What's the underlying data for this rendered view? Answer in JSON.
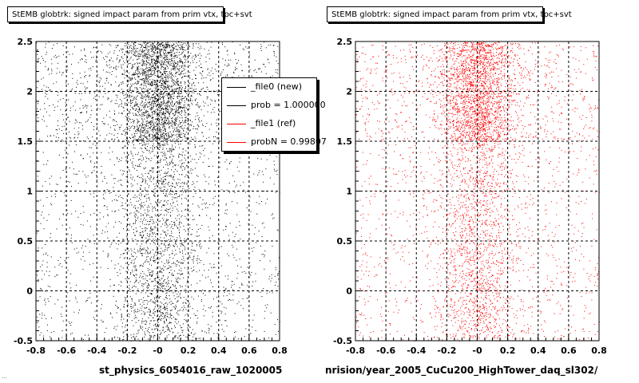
{
  "chart_data": [
    {
      "type": "scatter",
      "title": "StEMB globtrk: signed impact param from prim vtx, tpc+svt",
      "xlabel": "st_physics_6054016_raw_1020005",
      "ylabel": "",
      "xlim": [
        -0.8,
        0.8
      ],
      "ylim": [
        -0.5,
        2.5
      ],
      "xticks": [
        "-0.8",
        "-0.6",
        "-0.4",
        "-0.2",
        "-0",
        "0.2",
        "0.4",
        "0.6",
        "0.8"
      ],
      "yticks": [
        "-0.5",
        "0",
        "0.5",
        "1",
        "1.5",
        "2",
        "2.5"
      ],
      "grid": true,
      "series": [
        {
          "name": "_file0 (new)",
          "color": "#000000",
          "distribution": {
            "x_center": 0.0,
            "x_core_width": 0.12,
            "dense_band_y": [
              1.5,
              2.5
            ],
            "points_dense": 3200,
            "points_sparse": 2600
          }
        }
      ],
      "legend": {
        "placement": "top-right",
        "entries": [
          "_file0 (new)",
          "prob = 1.000000",
          "_file1 (ref)",
          "probN = 0.99807"
        ]
      }
    },
    {
      "type": "scatter",
      "title": "StEMB globtrk: signed impact param from prim vtx, tpc+svt",
      "xlabel": "nrision/year_2005_CuCu200_HighTower_daq_sl302/",
      "ylabel": "",
      "xlim": [
        -0.8,
        0.8
      ],
      "ylim": [
        -0.5,
        2.5
      ],
      "xticks": [
        "-0.8",
        "-0.6",
        "-0.4",
        "-0.2",
        "-0",
        "0.2",
        "0.4",
        "0.6",
        "0.8"
      ],
      "yticks": [
        "-0.5",
        "0",
        "0.5",
        "1",
        "1.5",
        "2",
        "2.5"
      ],
      "grid": true,
      "series": [
        {
          "name": "_file1 (ref)",
          "color": "#ff0000",
          "distribution": {
            "x_center": 0.0,
            "x_core_width": 0.12,
            "dense_band_y": [
              1.5,
              2.5
            ],
            "points_dense": 2800,
            "points_sparse": 2400
          }
        }
      ]
    }
  ],
  "legend_colors": [
    "#000000",
    "#000000",
    "#ff0000",
    "#ff0000"
  ],
  "footer_stamp": "..."
}
